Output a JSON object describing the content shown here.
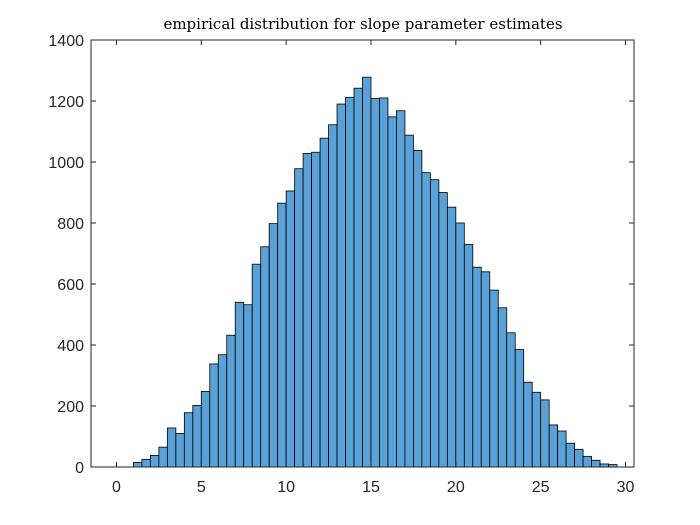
{
  "chart_data": {
    "type": "bar",
    "title": "empirical distribution for slope parameter estimates",
    "xlabel": "",
    "ylabel": "",
    "xlim": [
      -1.5,
      30.5
    ],
    "ylim": [
      0,
      1400
    ],
    "xticks": [
      0,
      5,
      10,
      15,
      20,
      25,
      30
    ],
    "yticks": [
      0,
      200,
      400,
      600,
      800,
      1000,
      1200,
      1400
    ],
    "grid": false,
    "bin_start": 1,
    "bin_width": 0.5,
    "bar_color": "#5aa1d7",
    "edge_color": "#000000",
    "values": [
      15,
      25,
      38,
      65,
      128,
      110,
      178,
      202,
      248,
      338,
      368,
      432,
      540,
      532,
      665,
      722,
      798,
      865,
      905,
      978,
      1028,
      1032,
      1078,
      1122,
      1190,
      1212,
      1242,
      1278,
      1208,
      1210,
      1148,
      1168,
      1088,
      1038,
      965,
      942,
      900,
      852,
      800,
      730,
      655,
      640,
      580,
      522,
      440,
      385,
      278,
      245,
      220,
      138,
      118,
      78,
      58,
      35,
      22,
      10,
      8
    ]
  }
}
